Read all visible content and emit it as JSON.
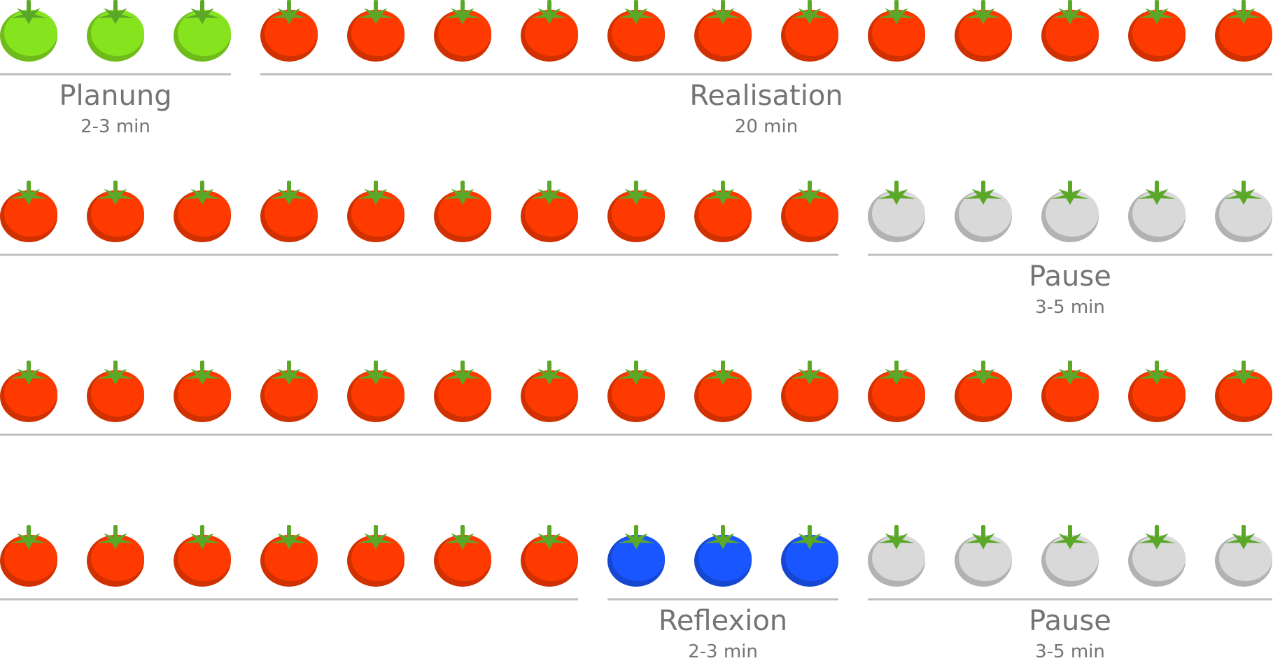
{
  "colors": {
    "planning": "#86e41e",
    "realisation": "#ff3a00",
    "pause": "#d9d9d9",
    "reflexion": "#1a56ff",
    "leaf": "#5ba829",
    "line": "#bdbdbd",
    "text": "#747474"
  },
  "rows": [
    {
      "tomatoes": [
        "planning",
        "planning",
        "planning",
        "realisation",
        "realisation",
        "realisation",
        "realisation",
        "realisation",
        "realisation",
        "realisation",
        "realisation",
        "realisation",
        "realisation",
        "realisation",
        "realisation"
      ],
      "segments": [
        {
          "phase": "planning",
          "label": "Planung",
          "duration": "2-3 min"
        },
        {
          "phase": "realisation",
          "label": "Realisation",
          "duration": "20 min"
        }
      ]
    },
    {
      "tomatoes": [
        "realisation",
        "realisation",
        "realisation",
        "realisation",
        "realisation",
        "realisation",
        "realisation",
        "realisation",
        "realisation",
        "realisation",
        "pause",
        "pause",
        "pause",
        "pause",
        "pause"
      ],
      "segments": [
        {
          "phase": "realisation",
          "label": "",
          "duration": ""
        },
        {
          "phase": "pause",
          "label": "Pause",
          "duration": "3-5 min"
        }
      ]
    },
    {
      "tomatoes": [
        "realisation",
        "realisation",
        "realisation",
        "realisation",
        "realisation",
        "realisation",
        "realisation",
        "realisation",
        "realisation",
        "realisation",
        "realisation",
        "realisation",
        "realisation",
        "realisation",
        "realisation"
      ],
      "segments": [
        {
          "phase": "realisation",
          "label": "",
          "duration": ""
        }
      ]
    },
    {
      "tomatoes": [
        "realisation",
        "realisation",
        "realisation",
        "realisation",
        "realisation",
        "realisation",
        "realisation",
        "reflexion",
        "reflexion",
        "reflexion",
        "pause",
        "pause",
        "pause",
        "pause",
        "pause"
      ],
      "segments": [
        {
          "phase": "realisation",
          "label": "",
          "duration": ""
        },
        {
          "phase": "reflexion",
          "label": "Reflexion",
          "duration": "2-3 min"
        },
        {
          "phase": "pause",
          "label": "Pause",
          "duration": "3-5 min"
        }
      ]
    }
  ]
}
